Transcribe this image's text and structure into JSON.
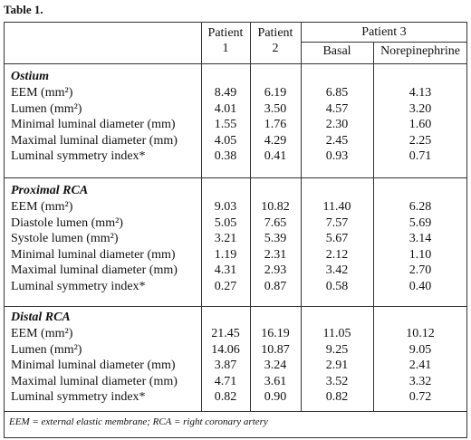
{
  "title": "Table 1.",
  "header": {
    "columns": [
      "Patient 1",
      "Patient 2",
      "Patient 3"
    ],
    "subcolumns": [
      "Basal",
      "Norepinephrine"
    ]
  },
  "sections": [
    {
      "heading": "Ostium",
      "rows": [
        [
          "EEM (mm²)",
          "8.49",
          "6.19",
          "6.85",
          "4.13"
        ],
        [
          "Lumen (mm²)",
          "4.01",
          "3.50",
          "4.57",
          "3.20"
        ],
        [
          "Minimal luminal diameter (mm)",
          "1.55",
          "1.76",
          "2.30",
          "1.60"
        ],
        [
          "Maximal luminal diameter (mm)",
          "4.05",
          "4.29",
          "2.45",
          "2.25"
        ],
        [
          "Luminal symmetry index*",
          "0.38",
          "0.41",
          "0.93",
          "0.71"
        ]
      ]
    },
    {
      "heading": "Proximal RCA",
      "rows": [
        [
          "EEM (mm²)",
          "9.03",
          "10.82",
          "11.40",
          "6.28"
        ],
        [
          "Diastole lumen (mm²)",
          "5.05",
          "7.65",
          "7.57",
          "5.69"
        ],
        [
          "Systole lumen (mm²)",
          "3.21",
          "5.39",
          "5.67",
          "3.14"
        ],
        [
          "Minimal luminal diameter (mm)",
          "1.19",
          "2.31",
          "2.12",
          "1.10"
        ],
        [
          "Maximal luminal diameter (mm)",
          "4.31",
          "2.93",
          "3.42",
          "2.70"
        ],
        [
          "Luminal symmetry index*",
          "0.27",
          "0.87",
          "0.58",
          "0.40"
        ]
      ]
    },
    {
      "heading": "Distal RCA",
      "rows": [
        [
          "EEM (mm²)",
          "21.45",
          "16.19",
          "11.05",
          "10.12"
        ],
        [
          "Lumen (mm²)",
          "14.06",
          "10.87",
          "9.25",
          "9.05"
        ],
        [
          "Minimal luminal diameter (mm)",
          "3.87",
          "3.24",
          "2.91",
          "2.41"
        ],
        [
          "Maximal luminal diameter (mm)",
          "4.71",
          "3.61",
          "3.52",
          "3.32"
        ],
        [
          "Luminal symmetry index*",
          "0.82",
          "0.90",
          "0.82",
          "0.72"
        ]
      ]
    }
  ],
  "footnote": "EEM = external elastic membrane; RCA = right coronary artery"
}
